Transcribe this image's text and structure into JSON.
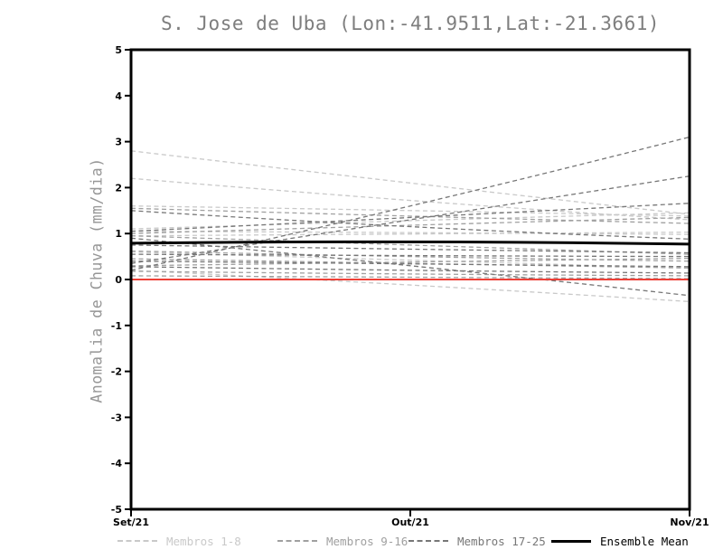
{
  "chart_data": {
    "type": "line",
    "title": "S. Jose de Uba (Lon:-41.9511,Lat:-21.3661)",
    "xlabel": "",
    "ylabel": "Anomalia de Chuva (mm/dia)",
    "x_categories": [
      "Set/21",
      "Out/21",
      "Nov/21"
    ],
    "ylim": [
      -5,
      5
    ],
    "yticks": [
      5,
      4,
      3,
      2,
      1,
      0,
      -1,
      -2,
      -3,
      -4,
      -5
    ],
    "grid": false,
    "legend_position": "bottom",
    "member_line_style": "dashed",
    "zero_line": {
      "value": 0,
      "color": "#ee4037",
      "style": "solid"
    },
    "groups": [
      {
        "name": "Membros 1-8",
        "color": "#c9c9c9",
        "members": [
          [
            2.8,
            2.1,
            1.42
          ],
          [
            2.2,
            1.72,
            1.3
          ],
          [
            1.6,
            1.5,
            1.38
          ],
          [
            1.1,
            1.28,
            1.45
          ],
          [
            1.05,
            1.02,
            0.98
          ],
          [
            0.95,
            0.99,
            1.03
          ],
          [
            0.6,
            0.42,
            0.25
          ],
          [
            0.2,
            -0.12,
            -0.48
          ]
        ]
      },
      {
        "name": "Membros 9-16",
        "color": "#a0a0a0",
        "members": [
          [
            1.55,
            1.38,
            1.22
          ],
          [
            1.0,
            1.18,
            1.35
          ],
          [
            0.95,
            0.75,
            0.55
          ],
          [
            0.62,
            0.5,
            0.4
          ],
          [
            0.45,
            0.35,
            0.25
          ],
          [
            0.3,
            0.38,
            0.46
          ],
          [
            0.18,
            0.12,
            0.08
          ],
          [
            0.08,
            0.05,
            0.02
          ]
        ]
      },
      {
        "name": "Membros 17-25",
        "color": "#777777",
        "members": [
          [
            1.5,
            1.15,
            0.88
          ],
          [
            0.2,
            1.6,
            3.1
          ],
          [
            0.35,
            1.3,
            2.25
          ],
          [
            1.05,
            1.35,
            1.66
          ],
          [
            0.9,
            0.3,
            -0.35
          ],
          [
            0.75,
            0.66,
            0.58
          ],
          [
            0.55,
            0.52,
            0.5
          ],
          [
            0.4,
            0.34,
            0.28
          ],
          [
            0.28,
            0.2,
            0.14
          ]
        ]
      }
    ],
    "ensemble_mean": {
      "name": "Ensemble Mean",
      "color": "#000000",
      "values": [
        0.79,
        0.82,
        0.77
      ]
    }
  },
  "style": {
    "title_color": "#7e7e7e",
    "ylabel_color": "#979797",
    "tick_color": "#000000",
    "axis_color": "#000000",
    "background": "#ffffff"
  }
}
